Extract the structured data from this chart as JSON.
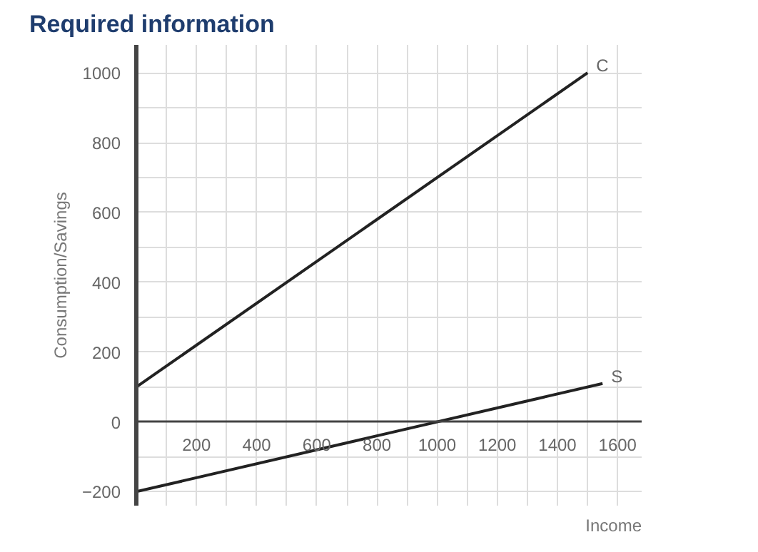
{
  "chart_data": {
    "type": "line",
    "title": "Required information",
    "xlabel": "Income",
    "ylabel": "Consumption/Savings",
    "series": [
      {
        "name": "C",
        "color": "#222222",
        "x": [
          0,
          1500
        ],
        "values": [
          100,
          1000
        ]
      },
      {
        "name": "S",
        "color": "#222222",
        "x": [
          0,
          1550
        ],
        "values": [
          -200,
          110
        ]
      }
    ],
    "xlim": [
      0,
      1680
    ],
    "ylim": [
      -240,
      1080
    ],
    "xticks": [
      200,
      400,
      600,
      800,
      1000,
      1200,
      1400,
      1600
    ],
    "yticks": [
      -200,
      0,
      200,
      400,
      600,
      800,
      1000
    ],
    "grid": true,
    "marker": "none",
    "line_style": "solid"
  }
}
